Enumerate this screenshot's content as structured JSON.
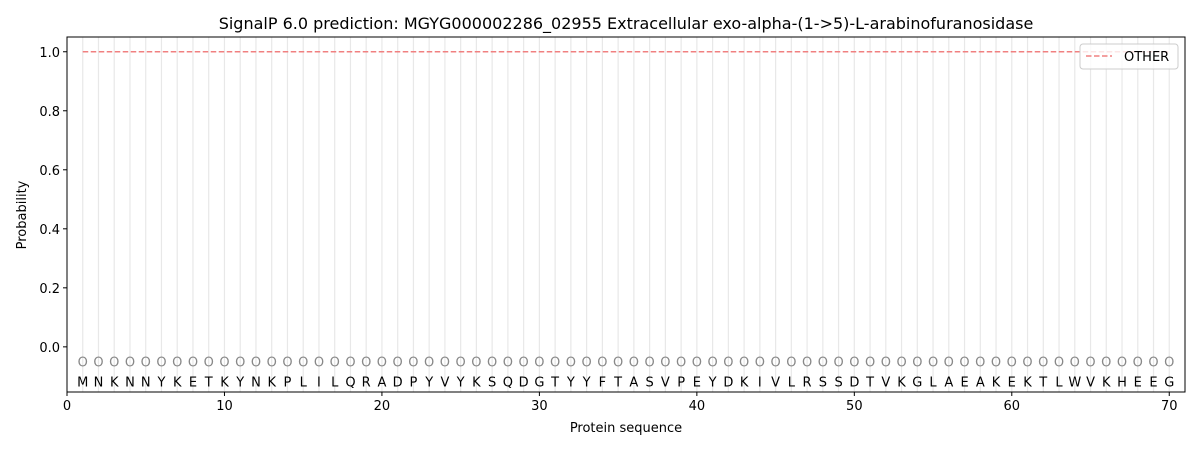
{
  "chart_data": {
    "type": "line",
    "title": "SignalP 6.0 prediction: MGYG000002286_02955 Extracellular exo-alpha-(1->5)-L-arabinofuranosidase",
    "xlabel": "Protein sequence",
    "ylabel": "Probability",
    "xlim": [
      0,
      71
    ],
    "ylim": [
      -0.153,
      1.05
    ],
    "xticks": [
      0,
      10,
      20,
      30,
      40,
      50,
      60,
      70
    ],
    "yticks": [
      0.0,
      0.2,
      0.4,
      0.6,
      0.8,
      1.0
    ],
    "ytick_labels": [
      "0.0",
      "0.2",
      "0.4",
      "0.6",
      "0.8",
      "1.0"
    ],
    "grid": "vertical per residue",
    "legend_placement": "top-right",
    "sequence": [
      "M",
      "N",
      "K",
      "N",
      "N",
      "Y",
      "K",
      "E",
      "T",
      "K",
      "Y",
      "N",
      "K",
      "P",
      "L",
      "I",
      "L",
      "Q",
      "R",
      "A",
      "D",
      "P",
      "Y",
      "V",
      "Y",
      "K",
      "S",
      "Q",
      "D",
      "G",
      "T",
      "Y",
      "Y",
      "F",
      "T",
      "A",
      "S",
      "V",
      "P",
      "E",
      "Y",
      "D",
      "K",
      "I",
      "V",
      "L",
      "R",
      "S",
      "S",
      "D",
      "T",
      "V",
      "K",
      "G",
      "L",
      "A",
      "E",
      "A",
      "K",
      "E",
      "K",
      "T",
      "L",
      "W",
      "V",
      "K",
      "H",
      "E",
      "E",
      "G"
    ],
    "region_label": "O",
    "series": [
      {
        "name": "OTHER",
        "color": "#f08080",
        "style": "dashed",
        "x_start": 1,
        "x_end": 70,
        "value": 1.0
      }
    ]
  }
}
